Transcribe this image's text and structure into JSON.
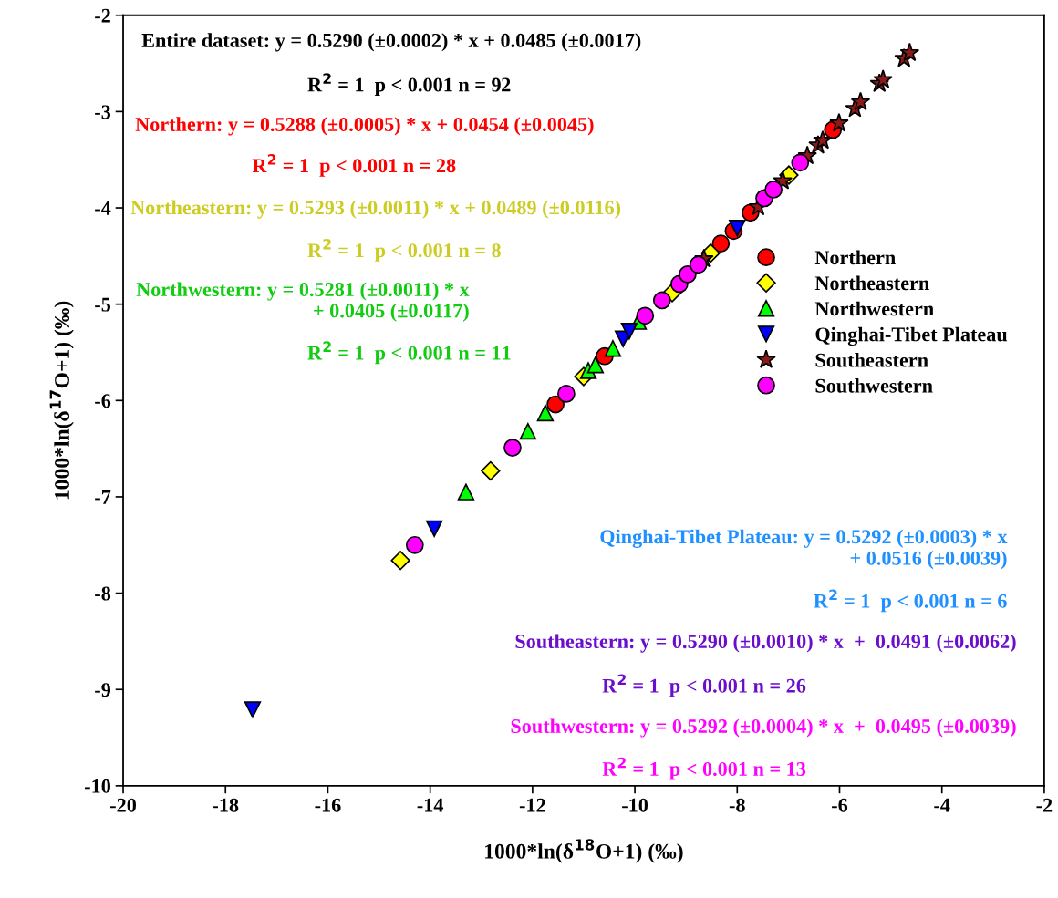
{
  "chart_data": {
    "type": "scatter",
    "xlabel": "1000*ln(δ$^{18}$O+1) (‰)",
    "ylabel": "1000*ln(δ$^{17}$O+1) (‰)",
    "xlim": [
      -20,
      -2
    ],
    "ylim": [
      -10,
      -2
    ],
    "xticks": [
      -20,
      -18,
      -16,
      -14,
      -12,
      -10,
      -8,
      -6,
      -4,
      -2
    ],
    "yticks": [
      -10,
      -9,
      -8,
      -7,
      -6,
      -5,
      -4,
      -3,
      -2
    ],
    "grid": false,
    "legend": "right",
    "series": [
      {
        "name": "Northern",
        "color": "#ff0000",
        "marker": "circle",
        "x": [
          -11.55,
          -10.59,
          -8.32,
          -8.07,
          -7.74,
          -6.13
        ],
        "values": [
          -6.04,
          -5.54,
          -4.37,
          -4.24,
          -4.05,
          -3.19
        ]
      },
      {
        "name": "Northeastern",
        "color": "#ffff00",
        "marker": "diamond",
        "x": [
          -14.58,
          -12.82,
          -11.0,
          -9.27,
          -8.52,
          -6.99
        ],
        "values": [
          -7.66,
          -6.73,
          -5.75,
          -4.88,
          -4.47,
          -3.66
        ]
      },
      {
        "name": "Northwestern",
        "color": "#00ff00",
        "marker": "triangle",
        "x": [
          -13.3,
          -12.09,
          -11.75,
          -10.91,
          -10.77,
          -10.43,
          -9.93
        ],
        "values": [
          -6.95,
          -6.32,
          -6.13,
          -5.69,
          -5.63,
          -5.46,
          -5.18
        ]
      },
      {
        "name": "Qinghai-Tibet Plateau",
        "color": "#0000ff",
        "marker": "triangle_down",
        "x": [
          -17.47,
          -13.92,
          -10.23,
          -10.11,
          -8.0
        ],
        "values": [
          -9.21,
          -7.33,
          -5.36,
          -5.28,
          -4.21
        ]
      },
      {
        "name": "Southeastern",
        "color": "#8b1a1a",
        "marker": "star",
        "x": [
          -8.65,
          -7.59,
          -7.11,
          -6.63,
          -6.42,
          -6.33,
          -6.01,
          -5.7,
          -5.59,
          -5.22,
          -5.15,
          -4.74,
          -4.63
        ],
        "values": [
          -4.53,
          -3.99,
          -3.72,
          -3.46,
          -3.35,
          -3.3,
          -3.12,
          -2.97,
          -2.9,
          -2.71,
          -2.67,
          -2.45,
          -2.39
        ]
      },
      {
        "name": "Southwestern",
        "color": "#ff00ff",
        "marker": "circle",
        "x": [
          -14.3,
          -12.39,
          -11.34,
          -9.8,
          -9.47,
          -9.13,
          -8.97,
          -8.76,
          -7.47,
          -7.29,
          -6.77
        ],
        "values": [
          -7.5,
          -6.49,
          -5.93,
          -5.12,
          -4.96,
          -4.79,
          -4.69,
          -4.59,
          -3.9,
          -3.81,
          -3.53
        ]
      }
    ],
    "annotations": [
      "Entire dataset: y = 0.5290 (±0.0002) * x + 0.0485 (±0.0017)",
      "R$^{2}$ = 1  p < 0.001 n = 92",
      "Northern: y = 0.5288 (±0.0005) * x + 0.0454 (±0.0045)",
      "R$^{2}$ = 1  p < 0.001 n = 28",
      "Northeastern: y = 0.5293 (±0.0011) * x + 0.0489 (±0.0116)",
      "R$^{2}$ = 1  p < 0.001 n = 8",
      "Northwestern: y = 0.5281 (±0.0011) * x\n+ 0.0405 (±0.0117)",
      "R$^{2}$ = 1  p < 0.001 n = 11",
      "Qinghai-Tibet Plateau: y = 0.5292 (±0.0003) * x\n+ 0.0516 (±0.0039)",
      "R$^{2}$ = 1  p < 0.001 n = 6",
      "Southeastern: y = 0.5290 (±0.0010) * x  +  0.0491 (±0.0062)",
      "R$^{2}$ = 1  p < 0.001 n = 26",
      "Southwestern: y = 0.5292 (±0.0004) * x  +  0.0495 (±0.0039)",
      "R$^{2}$ = 1  p < 0.001 n = 13"
    ]
  }
}
